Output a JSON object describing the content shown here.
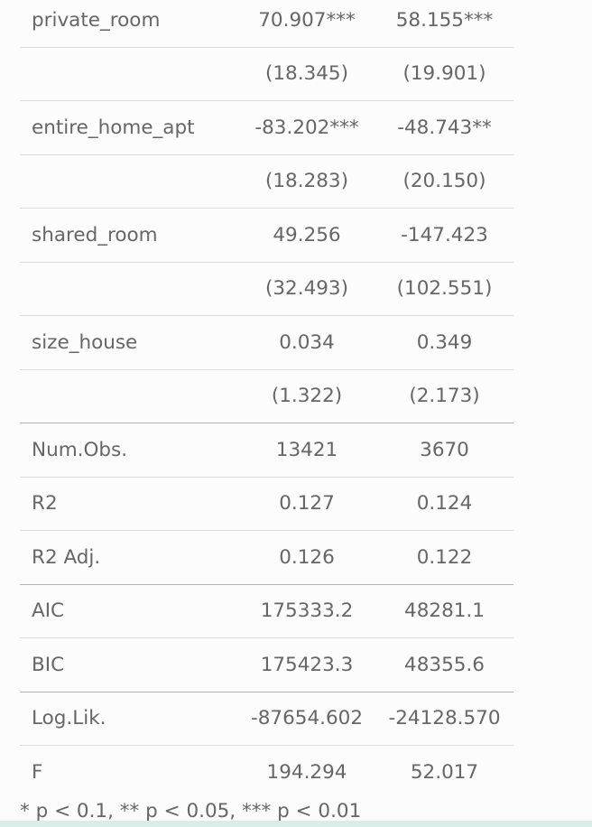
{
  "rows": [
    {
      "label": "private_room",
      "m1": "70.907***",
      "m2": "58.155***"
    },
    {
      "label": "",
      "m1": "(18.345)",
      "m2": "(19.901)"
    },
    {
      "label": "entire_home_apt",
      "m1": "-83.202***",
      "m2": "-48.743**"
    },
    {
      "label": "",
      "m1": "(18.283)",
      "m2": "(20.150)"
    },
    {
      "label": "shared_room",
      "m1": "49.256",
      "m2": "-147.423"
    },
    {
      "label": "",
      "m1": "(32.493)",
      "m2": "(102.551)"
    },
    {
      "label": "size_house",
      "m1": "0.034",
      "m2": "0.349"
    },
    {
      "label": "",
      "m1": "(1.322)",
      "m2": "(2.173)"
    },
    {
      "label": "Num.Obs.",
      "m1": "13421",
      "m2": "3670"
    },
    {
      "label": "R2",
      "m1": "0.127",
      "m2": "0.124"
    },
    {
      "label": "R2 Adj.",
      "m1": "0.126",
      "m2": "0.122"
    },
    {
      "label": "AIC",
      "m1": "175333.2",
      "m2": "48281.1"
    },
    {
      "label": "BIC",
      "m1": "175423.3",
      "m2": "48355.6"
    },
    {
      "label": "Log.Lik.",
      "m1": "-87654.602",
      "m2": "-24128.570"
    },
    {
      "label": "F",
      "m1": "194.294",
      "m2": "52.017"
    }
  ],
  "footnote": "* p < 0.1, ** p < 0.05, *** p < 0.01"
}
